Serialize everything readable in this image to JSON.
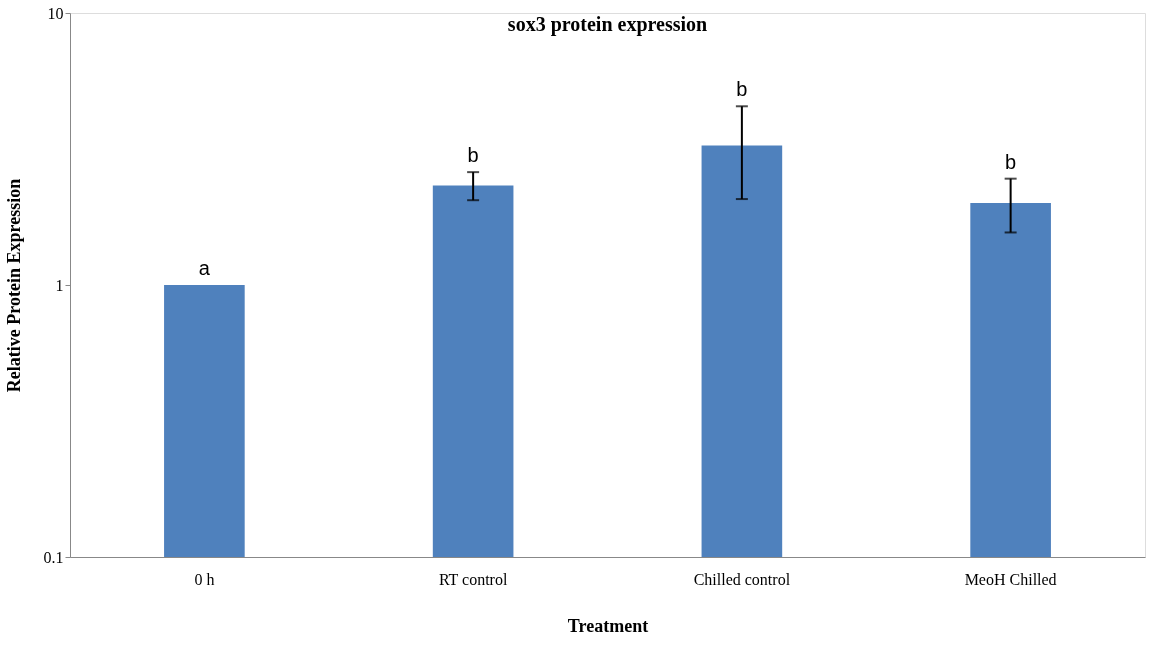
{
  "chart_data": {
    "type": "bar",
    "title": "sox3 protein expression",
    "xlabel": "Treatment",
    "ylabel": "Relative Protein Expression",
    "categories": [
      "0 h",
      "RT control",
      "Chilled control",
      "MeoH Chilled"
    ],
    "values": [
      1.0,
      2.32,
      3.26,
      2.0
    ],
    "errors": [
      null,
      [
        2.05,
        2.6
      ],
      [
        2.07,
        4.54
      ],
      [
        1.56,
        2.46
      ]
    ],
    "color": "#4f81bd",
    "log": "y",
    "ylim": [
      0.1,
      10
    ],
    "yticks": [
      0.1,
      1,
      10
    ],
    "grid": false,
    "annotations": [
      "a",
      "b",
      "b",
      "b"
    ]
  }
}
